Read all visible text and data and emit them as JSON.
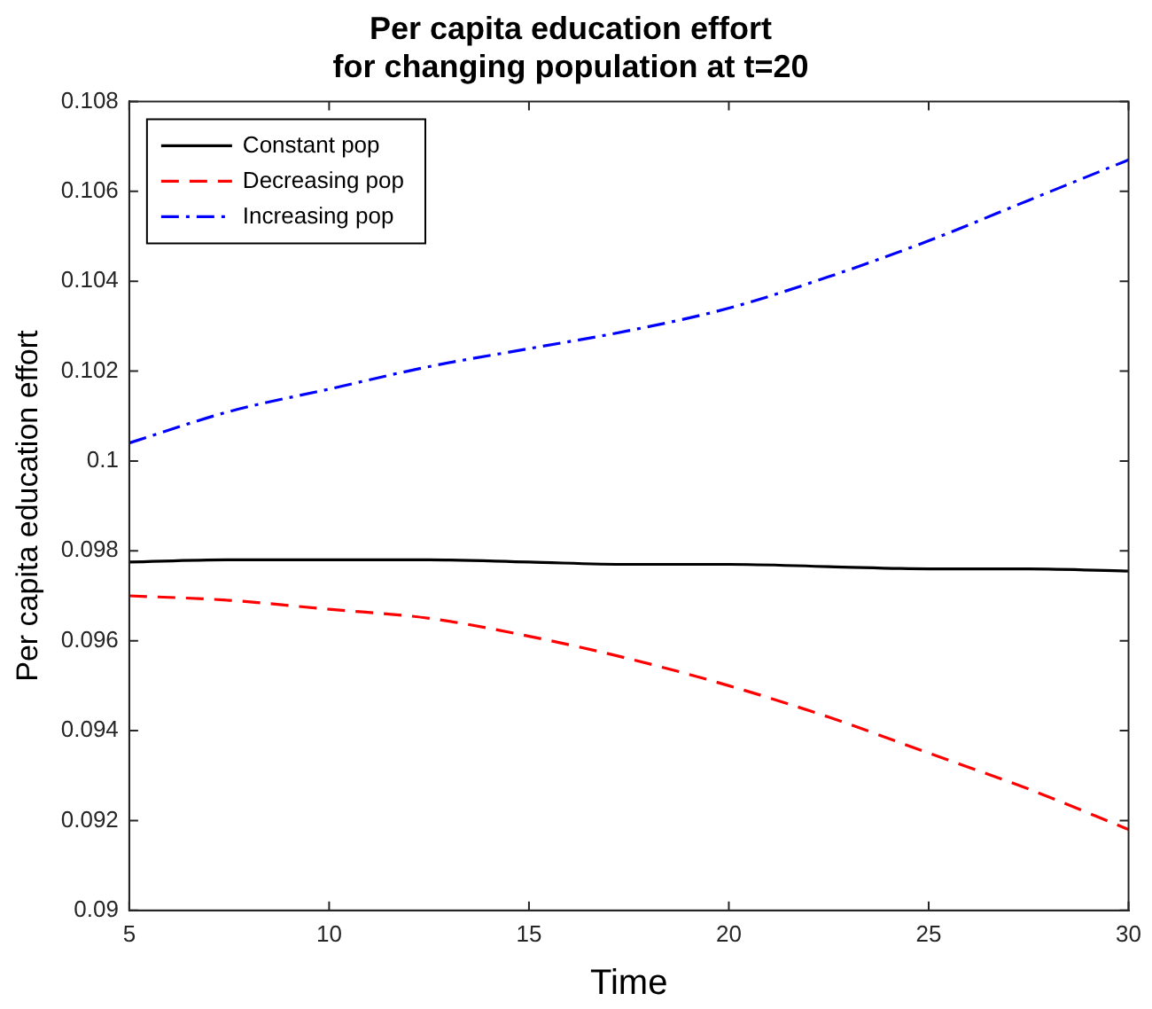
{
  "chart_data": {
    "type": "line",
    "title": "Per capita education effort\nfor changing population at t=20",
    "xlabel": "Time",
    "ylabel": "Per capita education effort",
    "x": [
      5,
      7.5,
      10,
      12.5,
      15,
      17.5,
      20,
      22.5,
      25,
      27.5,
      30
    ],
    "series": [
      {
        "name": "Constant pop",
        "color": "#000000",
        "line_style": "solid",
        "values": [
          0.09775,
          0.0978,
          0.0978,
          0.0978,
          0.09775,
          0.0977,
          0.0977,
          0.09765,
          0.0976,
          0.0976,
          0.09755
        ]
      },
      {
        "name": "Decreasing pop",
        "color": "#ff0000",
        "line_style": "dashed",
        "values": [
          0.097,
          0.0969,
          0.0967,
          0.0965,
          0.0961,
          0.0956,
          0.095,
          0.0943,
          0.0935,
          0.0927,
          0.0918
        ]
      },
      {
        "name": "Increasing pop",
        "color": "#0000ff",
        "line_style": "dashdot",
        "values": [
          0.1004,
          0.1011,
          0.1016,
          0.1021,
          0.1025,
          0.1029,
          0.1034,
          0.1041,
          0.1049,
          0.1058,
          0.1067
        ]
      }
    ],
    "xlim": [
      5,
      30
    ],
    "xticks": [
      5,
      10,
      15,
      20,
      25,
      30
    ],
    "ylim": [
      0.09,
      0.108
    ],
    "yticks": [
      0.09,
      0.092,
      0.094,
      0.096,
      0.098,
      0.1,
      0.102,
      0.104,
      0.106,
      0.108
    ],
    "grid": false,
    "legend": "top left",
    "marker": "none"
  }
}
